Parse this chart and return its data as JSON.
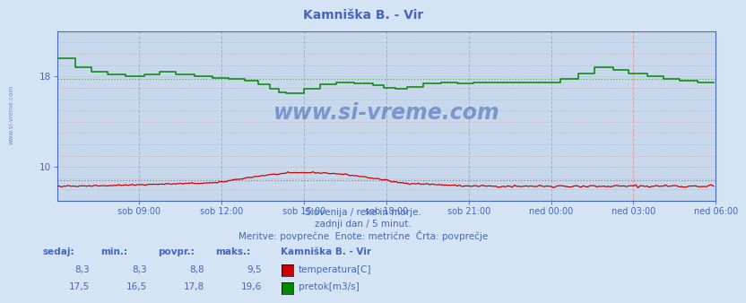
{
  "title": "Kamniška B. - Vir",
  "background_color": "#d4e4f4",
  "plot_bg_color": "#c8d8ec",
  "grid_color_v": "#e09090",
  "grid_color_h": "#e09090",
  "xlabel_ticks": [
    "sob 09:00",
    "sob 12:00",
    "sob 15:00",
    "sob 18:00",
    "sob 21:00",
    "ned 00:00",
    "ned 03:00",
    "ned 06:00"
  ],
  "yticks": [
    10,
    18
  ],
  "ylim": [
    7.0,
    22.0
  ],
  "xlim": [
    0,
    288
  ],
  "temp_avg": 8.8,
  "temp_min": 8.3,
  "temp_max": 9.5,
  "temp_sedaj": 8.3,
  "flow_avg": 17.8,
  "flow_min": 16.5,
  "flow_max": 19.6,
  "flow_sedaj": 17.5,
  "temp_color": "#cc0000",
  "flow_color": "#008800",
  "ref_line_temp_color": "#cc6666",
  "ref_line_flow_color": "#66aa66",
  "axis_color": "#4466bb",
  "text_color": "#4466bb",
  "subtitle1": "Slovenija / reke in morje.",
  "subtitle2": "zadnji dan / 5 minut.",
  "subtitle3": "Meritve: povprečne  Enote: metrične  Črta: povprečje",
  "table_headers": [
    "sedaj:",
    "min.:",
    "povpr.:",
    "maks.:"
  ],
  "station_name": "Kamniška B. - Vir",
  "label_temp": "temperatura[C]",
  "label_flow": "pretok[m3/s]",
  "watermark": "www.si-vreme.com"
}
